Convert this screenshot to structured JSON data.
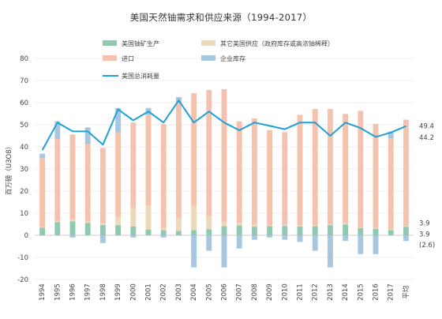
{
  "chart_data": {
    "type": "bar",
    "title": "美国天然铀需求和供应来源（1994-2017）",
    "ylabel": "百万磅（U3O8）",
    "ylim": [
      -20,
      80
    ],
    "yticks": [
      -20,
      -10,
      0,
      10,
      20,
      30,
      40,
      50,
      60,
      70,
      80
    ],
    "categories": [
      "1994",
      "1995",
      "1996",
      "1997",
      "1998",
      "1999",
      "2000",
      "2001",
      "2002",
      "2003",
      "2004",
      "2005",
      "2006",
      "2007",
      "2008",
      "2009",
      "2010",
      "2011",
      "2012",
      "2013",
      "2014",
      "2015",
      "2016",
      "2017",
      "平均"
    ],
    "stack_order": [
      "美国铀矿生产",
      "其它美国供应（政府库存或高浓铀稀释）",
      "进口",
      "企业库存"
    ],
    "series": [
      {
        "name": "美国铀矿生产",
        "kind": "bar",
        "color": "#8fc9b0",
        "values": [
          3.4,
          6.0,
          6.3,
          5.6,
          4.7,
          4.6,
          4.0,
          2.6,
          2.3,
          2.0,
          2.3,
          2.7,
          4.1,
          4.5,
          3.9,
          4.1,
          4.2,
          4.0,
          4.1,
          4.6,
          4.9,
          3.3,
          2.9,
          2.4,
          3.9
        ]
      },
      {
        "name": "其它美国供应（政府库存或高浓铀稀释）",
        "kind": "bar",
        "color": "#ecd9b8",
        "values": [
          0.5,
          0.6,
          0.8,
          0.7,
          0.8,
          4.0,
          8.5,
          11.0,
          1.0,
          6.0,
          11.0,
          6.0,
          2.0,
          1.0,
          1.0,
          0.5,
          0.5,
          0.5,
          0.5,
          0.5,
          0.5,
          0.5,
          0.5,
          0.5,
          0.4
        ]
      },
      {
        "name": "进口",
        "kind": "bar",
        "color": "#f4c2ae",
        "values": [
          31.0,
          37.0,
          38.5,
          35.0,
          34.0,
          38.0,
          38.5,
          41.0,
          47.0,
          52.0,
          51.0,
          57.0,
          60.0,
          46.0,
          48.0,
          43.0,
          42.0,
          50.0,
          52.5,
          52.0,
          49.5,
          52.5,
          47.0,
          41.0,
          48.0
        ]
      },
      {
        "name": "企业库存",
        "kind": "bar",
        "color": "#a8c6de",
        "values": [
          2.0,
          8.0,
          -1.0,
          7.5,
          -3.5,
          11.0,
          -1.0,
          3.0,
          -1.0,
          2.5,
          -14.5,
          -7.0,
          -14.5,
          -6.0,
          -2.0,
          -1.0,
          -2.0,
          -3.0,
          -7.0,
          -14.5,
          -2.5,
          -8.5,
          -8.5,
          3.0,
          -2.6
        ]
      },
      {
        "name": "美国总消耗量",
        "kind": "line",
        "color": "#1fa0d8",
        "values": [
          38.5,
          51.0,
          47.0,
          47.0,
          41.0,
          57.0,
          52.0,
          56.0,
          51.0,
          61.0,
          51.0,
          56.0,
          51.0,
          47.5,
          51.0,
          49.5,
          48.0,
          51.0,
          51.0,
          45.0,
          51.0,
          48.5,
          44.5,
          46.5,
          49.4
        ]
      }
    ],
    "legend_placement": "top",
    "grid": "horizontal",
    "value_labels": [
      "49.4",
      "44.2",
      "3.9",
      "3.9",
      "(2.6)"
    ]
  }
}
